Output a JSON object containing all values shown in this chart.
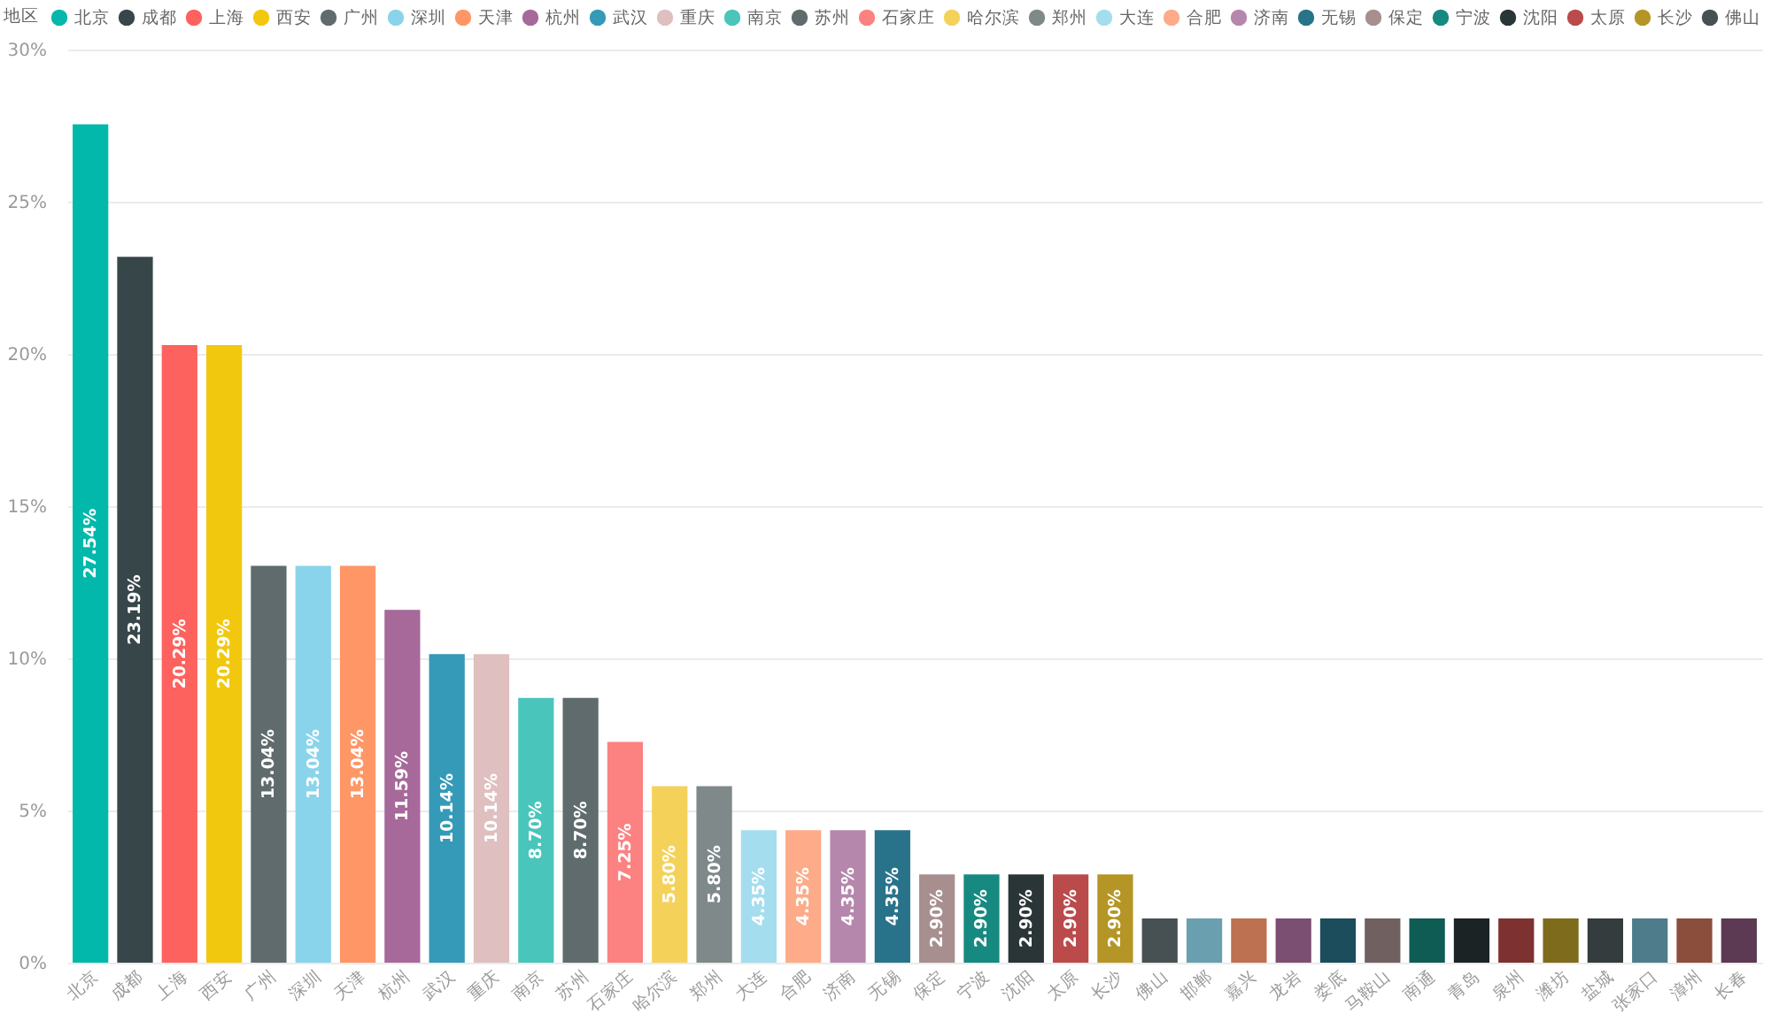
{
  "chart_data": {
    "type": "bar",
    "legend_title": "地区",
    "categories": [
      "北京",
      "成都",
      "上海",
      "西安",
      "广州",
      "深圳",
      "天津",
      "杭州",
      "武汉",
      "重庆",
      "南京",
      "苏州",
      "石家庄",
      "哈尔滨",
      "郑州",
      "大连",
      "合肥",
      "济南",
      "无锡",
      "保定",
      "宁波",
      "沈阳",
      "太原",
      "长沙",
      "佛山",
      "邯郸",
      "嘉兴",
      "龙岩",
      "娄底",
      "马鞍山",
      "南通",
      "青岛",
      "泉州",
      "潍坊",
      "盐城",
      "张家口",
      "漳州",
      "长春"
    ],
    "series": [
      {
        "name": "北京",
        "color": "#01b8aa",
        "x": [
          "北京"
        ],
        "values": [
          27.54
        ],
        "value_labels": [
          "27.54%"
        ]
      },
      {
        "name": "成都",
        "color": "#374649",
        "x": [
          "成都"
        ],
        "values": [
          23.19
        ],
        "value_labels": [
          "23.19%"
        ]
      },
      {
        "name": "上海",
        "color": "#fd625e",
        "x": [
          "上海"
        ],
        "values": [
          20.29
        ],
        "value_labels": [
          "20.29%"
        ]
      },
      {
        "name": "西安",
        "color": "#f2c80f",
        "x": [
          "西安"
        ],
        "values": [
          20.29
        ],
        "value_labels": [
          "20.29%"
        ]
      },
      {
        "name": "广州",
        "color": "#5f6b6d",
        "x": [
          "广州"
        ],
        "values": [
          13.04
        ],
        "value_labels": [
          "13.04%"
        ]
      },
      {
        "name": "深圳",
        "color": "#8ad4eb",
        "x": [
          "深圳"
        ],
        "values": [
          13.04
        ],
        "value_labels": [
          "13.04%"
        ]
      },
      {
        "name": "天津",
        "color": "#fe9666",
        "x": [
          "天津"
        ],
        "values": [
          13.04
        ],
        "value_labels": [
          "13.04%"
        ]
      },
      {
        "name": "杭州",
        "color": "#a66999",
        "x": [
          "杭州"
        ],
        "values": [
          11.59
        ],
        "value_labels": [
          "11.59%"
        ]
      },
      {
        "name": "武汉",
        "color": "#3599b8",
        "x": [
          "武汉"
        ],
        "values": [
          10.14
        ],
        "value_labels": [
          "10.14%"
        ]
      },
      {
        "name": "重庆",
        "color": "#dfbfbf",
        "x": [
          "重庆"
        ],
        "values": [
          10.14
        ],
        "value_labels": [
          "10.14%"
        ]
      },
      {
        "name": "南京",
        "color": "#4ac5bb",
        "x": [
          "南京"
        ],
        "values": [
          8.7
        ],
        "value_labels": [
          "8.70%"
        ]
      },
      {
        "name": "苏州",
        "color": "#5f6b6d",
        "x": [
          "苏州"
        ],
        "values": [
          8.7
        ],
        "value_labels": [
          "8.70%"
        ]
      },
      {
        "name": "石家庄",
        "color": "#fb8281",
        "x": [
          "石家庄"
        ],
        "values": [
          7.25
        ],
        "value_labels": [
          "7.25%"
        ]
      },
      {
        "name": "哈尔滨",
        "color": "#f4d25a",
        "x": [
          "哈尔滨"
        ],
        "values": [
          5.8
        ],
        "value_labels": [
          "5.80%"
        ]
      },
      {
        "name": "郑州",
        "color": "#7f898a",
        "x": [
          "郑州"
        ],
        "values": [
          5.8
        ],
        "value_labels": [
          "5.80%"
        ]
      },
      {
        "name": "大连",
        "color": "#a4ddee",
        "x": [
          "大连"
        ],
        "values": [
          4.35
        ],
        "value_labels": [
          "4.35%"
        ]
      },
      {
        "name": "合肥",
        "color": "#fdab89",
        "x": [
          "合肥"
        ],
        "values": [
          4.35
        ],
        "value_labels": [
          "4.35%"
        ]
      },
      {
        "name": "济南",
        "color": "#b687ac",
        "x": [
          "济南"
        ],
        "values": [
          4.35
        ],
        "value_labels": [
          "4.35%"
        ]
      },
      {
        "name": "无锡",
        "color": "#28738a",
        "x": [
          "无锡"
        ],
        "values": [
          4.35
        ],
        "value_labels": [
          "4.35%"
        ]
      },
      {
        "name": "保定",
        "color": "#a78f8f",
        "x": [
          "保定"
        ],
        "values": [
          2.9
        ],
        "value_labels": [
          "2.90%"
        ]
      },
      {
        "name": "宁波",
        "color": "#168980",
        "x": [
          "宁波"
        ],
        "values": [
          2.9
        ],
        "value_labels": [
          "2.90%"
        ]
      },
      {
        "name": "沈阳",
        "color": "#293537",
        "x": [
          "沈阳"
        ],
        "values": [
          2.9
        ],
        "value_labels": [
          "2.90%"
        ]
      },
      {
        "name": "太原",
        "color": "#bb4a4a",
        "x": [
          "太原"
        ],
        "values": [
          2.9
        ],
        "value_labels": [
          "2.90%"
        ]
      },
      {
        "name": "长沙",
        "color": "#b59525",
        "x": [
          "长沙"
        ],
        "values": [
          2.9
        ],
        "value_labels": [
          "2.90%"
        ]
      },
      {
        "name": "佛山",
        "color": "#475052",
        "x": [
          "佛山"
        ],
        "values": [
          1.45
        ]
      },
      {
        "color": "#6a9fb0",
        "x": [
          "邯郸"
        ],
        "values": [
          1.45
        ]
      },
      {
        "color": "#bd7150",
        "x": [
          "嘉兴"
        ],
        "values": [
          1.45
        ]
      },
      {
        "color": "#7b4f71",
        "x": [
          "龙岩"
        ],
        "values": [
          1.45
        ]
      },
      {
        "color": "#1b4d5c",
        "x": [
          "娄底"
        ],
        "values": [
          1.45
        ]
      },
      {
        "color": "#706060",
        "x": [
          "马鞍山"
        ],
        "values": [
          1.45
        ]
      },
      {
        "color": "#0f5c55",
        "x": [
          "南通"
        ],
        "values": [
          1.45
        ]
      },
      {
        "color": "#1c2325",
        "x": [
          "青岛"
        ],
        "values": [
          1.45
        ]
      },
      {
        "color": "#7d3231",
        "x": [
          "泉州"
        ],
        "values": [
          1.45
        ]
      },
      {
        "color": "#7f6b1c",
        "x": [
          "潍坊"
        ],
        "values": [
          1.45
        ]
      },
      {
        "color": "#343c3e",
        "x": [
          "盐城"
        ],
        "values": [
          1.45
        ]
      },
      {
        "color": "#4f7c8a",
        "x": [
          "张家口"
        ],
        "values": [
          1.45
        ]
      },
      {
        "color": "#8b4e3c",
        "x": [
          "漳州"
        ],
        "values": [
          1.45
        ]
      },
      {
        "color": "#5c3a53",
        "x": [
          "长春"
        ],
        "values": [
          1.45
        ]
      }
    ],
    "ylim": [
      0,
      30
    ],
    "yticks": [
      {
        "value": 0,
        "label": "0%"
      },
      {
        "value": 5,
        "label": "5%"
      },
      {
        "value": 10,
        "label": "10%"
      },
      {
        "value": 15,
        "label": "15%"
      },
      {
        "value": 20,
        "label": "20%"
      },
      {
        "value": 25,
        "label": "25%"
      },
      {
        "value": 30,
        "label": "30%"
      }
    ],
    "grid": "y",
    "legend": "top left"
  }
}
